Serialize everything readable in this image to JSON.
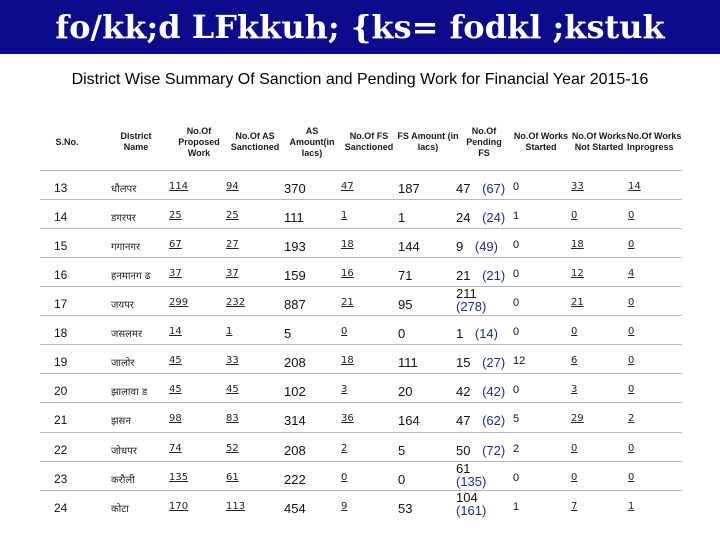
{
  "banner": {
    "title": "fo/kk;d LFkkuh; {ks= fodkl ;kstuk"
  },
  "subtitle": "District Wise Summary Of Sanction and Pending Work for Financial Year 2015-16",
  "colors": {
    "banner_bg": "#0b0b8c",
    "banner_text": "#ffffff",
    "pending_value": "#1f2a8a"
  },
  "table": {
    "headers": {
      "sno": "S.No.",
      "district": "District Name",
      "proposed": "No.Of Proposed Work",
      "as_sanctioned": "No.Of AS Sanctioned",
      "as_amount": "AS Amount(in lacs)",
      "fs_sanctioned": "No.Of FS Sanctioned",
      "fs_amount": "FS Amount (in lacs)",
      "pending_fs": "No.Of Pending FS",
      "works_started": "No.Of Works Started",
      "works_not_started": "No.Of Works Not Started",
      "works_inprogress": "No.Of Works Inprogress"
    },
    "rows": [
      {
        "sno": "13",
        "district": "धौलपर",
        "proposed": "114",
        "as_sanctioned": "94",
        "as_amount": "370",
        "fs_sanctioned": "47",
        "fs_amount": "187",
        "pending_a": "47",
        "pending_b": "(67)",
        "works_started": "0",
        "works_not_started": "33",
        "works_inprogress": "14"
      },
      {
        "sno": "14",
        "district": "डगरपर",
        "proposed": "25",
        "as_sanctioned": "25",
        "as_amount": "111",
        "fs_sanctioned": "1",
        "fs_amount": "1",
        "pending_a": "24",
        "pending_b": "(24)",
        "works_started": "1",
        "works_not_started": "0",
        "works_inprogress": "0"
      },
      {
        "sno": "15",
        "district": "गगानगर",
        "proposed": "67",
        "as_sanctioned": "27",
        "as_amount": "193",
        "fs_sanctioned": "18",
        "fs_amount": "144",
        "pending_a": "9",
        "pending_b": "(49)",
        "works_started": "0",
        "works_not_started": "18",
        "works_inprogress": "0"
      },
      {
        "sno": "16",
        "district": "हनमानग ढ",
        "proposed": "37",
        "as_sanctioned": "37",
        "as_amount": "159",
        "fs_sanctioned": "16",
        "fs_amount": "71",
        "pending_a": "21",
        "pending_b": "(21)",
        "works_started": "0",
        "works_not_started": "12",
        "works_inprogress": "4"
      },
      {
        "sno": "17",
        "district": "जयपर",
        "proposed": "299",
        "as_sanctioned": "232",
        "as_amount": "887",
        "fs_sanctioned": "21",
        "fs_amount": "95",
        "pending_a": "211",
        "pending_b": "(278)",
        "works_started": "0",
        "works_not_started": "21",
        "works_inprogress": "0"
      },
      {
        "sno": "18",
        "district": "जसलमर",
        "proposed": "14",
        "as_sanctioned": "1",
        "as_amount": "5",
        "fs_sanctioned": "0",
        "fs_amount": "0",
        "pending_a": "1",
        "pending_b": "(14)",
        "works_started": "0",
        "works_not_started": "0",
        "works_inprogress": "0"
      },
      {
        "sno": "19",
        "district": "जालोर",
        "proposed": "45",
        "as_sanctioned": "33",
        "as_amount": "208",
        "fs_sanctioned": "18",
        "fs_amount": "111",
        "pending_a": "15",
        "pending_b": "(27)",
        "works_started": "12",
        "works_not_started": "6",
        "works_inprogress": "0"
      },
      {
        "sno": "20",
        "district": "झालावा ड",
        "proposed": "45",
        "as_sanctioned": "45",
        "as_amount": "102",
        "fs_sanctioned": "3",
        "fs_amount": "20",
        "pending_a": "42",
        "pending_b": "(42)",
        "works_started": "0",
        "works_not_started": "3",
        "works_inprogress": "0"
      },
      {
        "sno": "21",
        "district": "झसन",
        "proposed": "98",
        "as_sanctioned": "83",
        "as_amount": "314",
        "fs_sanctioned": "36",
        "fs_amount": "164",
        "pending_a": "47",
        "pending_b": "(62)",
        "works_started": "5",
        "works_not_started": "29",
        "works_inprogress": "2"
      },
      {
        "sno": "22",
        "district": "जोधपर",
        "proposed": "74",
        "as_sanctioned": "52",
        "as_amount": "208",
        "fs_sanctioned": "2",
        "fs_amount": "5",
        "pending_a": "50",
        "pending_b": "(72)",
        "works_started": "2",
        "works_not_started": "0",
        "works_inprogress": "0"
      },
      {
        "sno": "23",
        "district": "करौली",
        "proposed": "135",
        "as_sanctioned": "61",
        "as_amount": "222",
        "fs_sanctioned": "0",
        "fs_amount": "0",
        "pending_a": "61",
        "pending_b": "(135)",
        "works_started": "0",
        "works_not_started": "0",
        "works_inprogress": "0"
      },
      {
        "sno": "24",
        "district": "कोटा",
        "proposed": "170",
        "as_sanctioned": "113",
        "as_amount": "454",
        "fs_sanctioned": "9",
        "fs_amount": "53",
        "pending_a": "104",
        "pending_b": "(161)",
        "works_started": "1",
        "works_not_started": "7",
        "works_inprogress": "1"
      }
    ]
  }
}
